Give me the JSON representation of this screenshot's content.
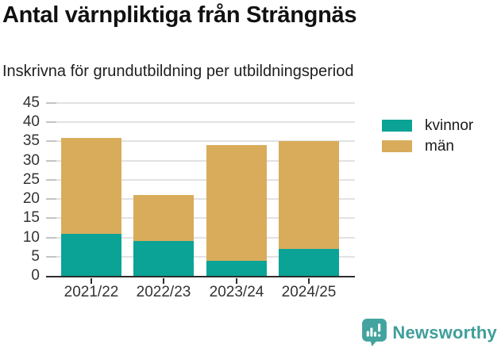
{
  "header": {
    "title": "Antal värnpliktiga från Strängnäs",
    "subtitle": "Inskrivna för grundutbildning per utbildningsperiod"
  },
  "chart_data": {
    "type": "bar",
    "stacked": true,
    "title": "Antal värnpliktiga från Strängnäs",
    "subtitle": "Inskrivna för grundutbildning per utbildningsperiod",
    "categories": [
      "2021/22",
      "2022/23",
      "2023/24",
      "2024/25"
    ],
    "series": [
      {
        "name": "kvinnor",
        "color": "#0aa396",
        "values": [
          11,
          9,
          4,
          7
        ]
      },
      {
        "name": "män",
        "color": "#d9ac5b",
        "values": [
          25,
          12,
          30,
          28
        ]
      }
    ],
    "stack_totals": [
      36,
      21,
      34,
      35
    ],
    "xlabel": "",
    "ylabel": "",
    "ylim": [
      0,
      45
    ],
    "ytick_step": 5,
    "grid": true,
    "legend_position": "top-right"
  },
  "footer": {
    "brand": "Newsworthy",
    "logo_icon": "speech-bubble-bar-chart-icon"
  },
  "colors": {
    "series_kvinnor": "#0aa396",
    "series_man": "#d9ac5b",
    "axis": "#2d2d2d",
    "gridline": "#e2e2e2",
    "tick_mark": "#c4c4c4",
    "tick_text": "#333333",
    "title_text": "#111111",
    "brand": "#3f9e9a"
  }
}
